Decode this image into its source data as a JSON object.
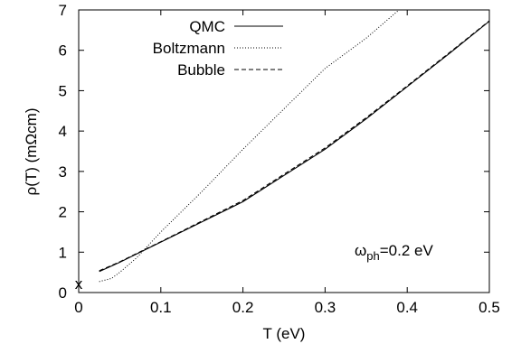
{
  "chart_data": {
    "type": "line",
    "xlabel": "T (eV)",
    "ylabel": "ρ(T) (mΩcm)",
    "xlim": [
      0,
      0.5
    ],
    "ylim": [
      0,
      7
    ],
    "x_ticks": [
      "0",
      "0.1",
      "0.2",
      "0.3",
      "0.4",
      "0.5"
    ],
    "y_ticks": [
      "0",
      "1",
      "2",
      "3",
      "4",
      "5",
      "6",
      "7"
    ],
    "grid": false,
    "legend_position": "top-left",
    "series": [
      {
        "name": "QMC",
        "style": "solid",
        "x": [
          0.025,
          0.05,
          0.075,
          0.1,
          0.15,
          0.2,
          0.25,
          0.3,
          0.35,
          0.4,
          0.45,
          0.5
        ],
        "y": [
          0.52,
          0.75,
          1.0,
          1.25,
          1.75,
          2.25,
          2.9,
          3.55,
          4.3,
          5.1,
          5.9,
          6.72
        ]
      },
      {
        "name": "Boltzmann",
        "style": "dotted",
        "x": [
          0.025,
          0.04,
          0.05,
          0.07,
          0.1,
          0.15,
          0.2,
          0.25,
          0.3,
          0.35,
          0.39
        ],
        "y": [
          0.27,
          0.35,
          0.5,
          0.85,
          1.5,
          2.5,
          3.55,
          4.55,
          5.55,
          6.3,
          7.0
        ]
      },
      {
        "name": "Bubble",
        "style": "dashed",
        "x": [
          0.025,
          0.05,
          0.075,
          0.1,
          0.15,
          0.2,
          0.25,
          0.3,
          0.35,
          0.4,
          0.45,
          0.5
        ],
        "y": [
          0.54,
          0.76,
          1.01,
          1.26,
          1.77,
          2.28,
          2.93,
          3.58,
          4.33,
          5.12,
          5.92,
          6.73
        ]
      }
    ],
    "extra_points": [
      {
        "label": "x",
        "x": 0.0,
        "y": 0.2
      }
    ],
    "annotation": {
      "base": "ω",
      "sub": "ph",
      "rest": "=0.2 eV"
    }
  }
}
